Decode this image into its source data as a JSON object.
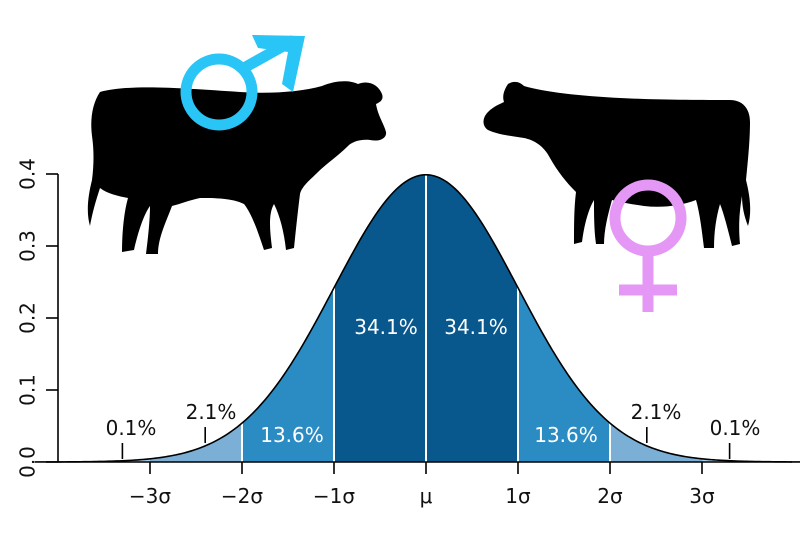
{
  "chart_data": {
    "type": "area",
    "title": "",
    "xlabel": "",
    "ylabel": "",
    "xlim": [
      -4.25,
      4.1
    ],
    "ylim": [
      0,
      0.4
    ],
    "x_ticks": [
      {
        "value": -3,
        "label": "−3σ"
      },
      {
        "value": -2,
        "label": "−2σ"
      },
      {
        "value": -1,
        "label": "−1σ"
      },
      {
        "value": 0,
        "label": "μ"
      },
      {
        "value": 1,
        "label": "1σ"
      },
      {
        "value": 2,
        "label": "2σ"
      },
      {
        "value": 3,
        "label": "3σ"
      }
    ],
    "y_ticks": [
      {
        "value": 0.0,
        "label": "0.0"
      },
      {
        "value": 0.1,
        "label": "0.1"
      },
      {
        "value": 0.2,
        "label": "0.2"
      },
      {
        "value": 0.3,
        "label": "0.3"
      },
      {
        "value": 0.4,
        "label": "0.4"
      }
    ],
    "distribution": {
      "name": "normal",
      "mean": 0,
      "sd": 1,
      "peak_density": 0.399
    },
    "regions": [
      {
        "from": -2,
        "to": -1,
        "percent": "13.6%",
        "color": "#2b8cc4"
      },
      {
        "from": -1,
        "to": 0,
        "percent": "34.1%",
        "color": "#08588e"
      },
      {
        "from": 0,
        "to": 1,
        "percent": "34.1%",
        "color": "#08588e"
      },
      {
        "from": 1,
        "to": 2,
        "percent": "13.6%",
        "color": "#2b8cc4"
      },
      {
        "from": -3,
        "to": -2,
        "percent": "2.1%",
        "color": "#7bafd6"
      },
      {
        "from": 2,
        "to": 3,
        "percent": "2.1%",
        "color": "#7bafd6"
      },
      {
        "from": -4.25,
        "to": -3,
        "percent": "0.1%",
        "color": "#a9cbe6"
      },
      {
        "from": 3,
        "to": 4.1,
        "percent": "0.1%",
        "color": "#a9cbe6"
      }
    ],
    "grid": false,
    "legend": "none"
  },
  "symbols": {
    "male": {
      "name": "male-symbol-icon",
      "color": "#29c5f6"
    },
    "female": {
      "name": "female-symbol-icon",
      "color": "#e497f5"
    }
  },
  "silhouettes": [
    {
      "name": "bull-silhouette-icon",
      "color": "#000000"
    },
    {
      "name": "cow-silhouette-icon",
      "color": "#000000"
    }
  ]
}
